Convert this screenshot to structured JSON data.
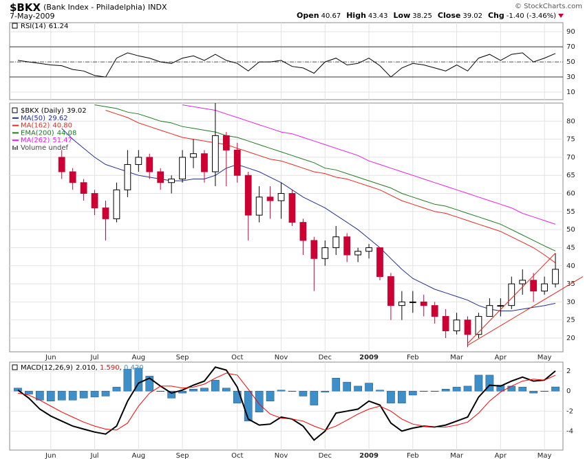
{
  "header": {
    "title": "$BKX",
    "subtitle": "(Bank Index - Philadelphia)",
    "exchange": "INDX",
    "date": "7-May-2009",
    "credit": "© StockCharts.com",
    "quote": [
      {
        "label": "Open",
        "value": "40.67"
      },
      {
        "label": "High",
        "value": "43.43"
      },
      {
        "label": "Low",
        "value": "38.25"
      },
      {
        "label": "Close",
        "value": "39.02"
      },
      {
        "label": "Chg",
        "value": "-1.40 (-3.46%)"
      }
    ]
  },
  "chart_data": [
    {
      "type": "line",
      "series": [
        {
          "name": "RSI(14)",
          "color": "#000000",
          "values": [
            52,
            50,
            48,
            46,
            45,
            40,
            38,
            32,
            30,
            55,
            62,
            58,
            55,
            50,
            48,
            55,
            58,
            52,
            60,
            52,
            48,
            38,
            50,
            50,
            52,
            44,
            42,
            35,
            50,
            55,
            46,
            48,
            55,
            45,
            30,
            42,
            48,
            46,
            42,
            38,
            46,
            38,
            55,
            60,
            52,
            60,
            62,
            50,
            55,
            61.24
          ]
        }
      ],
      "ylim": [
        0,
        102
      ],
      "yticks": [
        10,
        30,
        50,
        70,
        90
      ],
      "reference_lines": [
        30,
        70
      ],
      "center_line": 50,
      "grid": true
    },
    {
      "type": "candlestick",
      "name": "$BKX (Daily)",
      "categories": [
        null,
        null,
        null,
        "Jun",
        null,
        null,
        null,
        "Jul",
        null,
        null,
        null,
        "Aug",
        null,
        null,
        null,
        "Sep",
        null,
        null,
        null,
        null,
        "Oct",
        null,
        null,
        null,
        "Nov",
        null,
        null,
        null,
        "Dec",
        null,
        null,
        null,
        "2009",
        null,
        null,
        null,
        "Feb",
        null,
        null,
        null,
        "Mar",
        null,
        null,
        null,
        "Apr",
        null,
        null,
        null,
        "May",
        null
      ],
      "open": [
        null,
        null,
        null,
        null,
        70,
        66,
        63,
        60,
        56,
        53,
        61,
        68,
        70,
        66,
        63,
        64,
        70,
        71,
        66,
        76,
        72,
        65,
        54,
        59,
        58,
        60,
        52,
        47,
        42,
        45,
        48,
        43,
        44,
        45,
        37,
        29,
        30,
        30,
        29,
        26,
        22,
        25,
        21,
        26,
        29,
        29,
        35,
        36,
        33,
        35
      ],
      "high": [
        null,
        null,
        null,
        null,
        72,
        67,
        64,
        61,
        58,
        63,
        72,
        72,
        71,
        67,
        65,
        72,
        75,
        72,
        85,
        77,
        74,
        66,
        62,
        62,
        63,
        61,
        53,
        48,
        47,
        51,
        49,
        45,
        46,
        45,
        38,
        33,
        33,
        32,
        30,
        28,
        27,
        26,
        27,
        31,
        31,
        37,
        39,
        38,
        37,
        43.43
      ],
      "low": [
        null,
        null,
        null,
        null,
        64,
        61,
        58,
        54,
        47,
        52,
        59,
        66,
        64,
        61,
        60,
        63,
        67,
        63,
        62,
        62,
        63,
        47,
        52,
        53,
        53,
        51,
        43,
        33,
        40,
        43,
        41,
        41,
        42,
        36,
        25,
        25,
        27,
        26,
        24,
        20,
        21,
        17.5,
        20,
        26,
        26,
        28,
        32,
        30,
        32,
        34
      ],
      "close": [
        null,
        null,
        null,
        null,
        66,
        63,
        60,
        56,
        53,
        61,
        68,
        70,
        66,
        63,
        64,
        70,
        71,
        66,
        76,
        72,
        65,
        54,
        59,
        58,
        60,
        52,
        47,
        42,
        45,
        48,
        43,
        44,
        45,
        37,
        29,
        30,
        30,
        29,
        26,
        22,
        25,
        21,
        26,
        29,
        29,
        35,
        36,
        33,
        35,
        39.02
      ],
      "up_color": "#000000",
      "down_color": "#cc0033",
      "series": [
        {
          "name": "MA(50)",
          "color": "#1f2f8f",
          "last_label": "29.62",
          "values": [
            null,
            null,
            null,
            null,
            78,
            75,
            72.5,
            70,
            68,
            67,
            66,
            65,
            64.5,
            64,
            63.5,
            63.5,
            64,
            64,
            65,
            67,
            68,
            67,
            66,
            64.5,
            63,
            61,
            59,
            57.5,
            56,
            54,
            52,
            50,
            47.5,
            45,
            42,
            39,
            36.5,
            35,
            33.5,
            32.5,
            31.5,
            30.5,
            29,
            28,
            27.5,
            27.5,
            28,
            28.5,
            29,
            29.62
          ]
        },
        {
          "name": "MA(162)",
          "color": "#e8281e",
          "last_label": "40.80",
          "values": [
            null,
            null,
            null,
            null,
            null,
            null,
            null,
            null,
            83,
            82,
            81,
            79.5,
            78.5,
            77.5,
            76.5,
            75.5,
            75,
            74.5,
            74,
            73.5,
            72.5,
            71.5,
            70.5,
            69.5,
            69,
            68,
            67,
            66,
            65.5,
            64.5,
            64,
            63,
            62,
            61,
            59.5,
            58,
            57,
            56,
            55,
            54.5,
            53.5,
            52.5,
            51.5,
            50.5,
            49.5,
            48,
            46.5,
            45,
            43,
            40.8
          ]
        },
        {
          "name": "EMA(200)",
          "color": "#1e7a1e",
          "last_label": "44.08",
          "values": [
            null,
            null,
            null,
            null,
            null,
            null,
            null,
            84.5,
            84,
            83.5,
            82.5,
            82,
            81,
            80,
            79.5,
            78.5,
            78,
            77.5,
            77,
            76,
            75.5,
            74.5,
            73.5,
            72.5,
            71.5,
            70.5,
            69.5,
            68.5,
            67,
            66.5,
            65.5,
            64.5,
            63.5,
            62.5,
            61.5,
            60,
            59,
            58,
            57,
            56.5,
            55.5,
            54.5,
            53.5,
            52.5,
            51.5,
            50,
            48.5,
            47,
            45.5,
            44.08
          ]
        },
        {
          "name": "MA(262)",
          "color": "#e81ee8",
          "last_label": "51.47",
          "values": [
            null,
            null,
            null,
            null,
            null,
            null,
            null,
            null,
            null,
            null,
            null,
            null,
            null,
            null,
            null,
            84.5,
            84,
            83.5,
            83,
            82,
            81,
            80,
            79,
            78,
            77,
            76.5,
            75.5,
            74.5,
            73.5,
            72.5,
            71.5,
            70.5,
            69,
            68,
            67,
            66,
            65,
            64,
            63,
            62,
            61,
            60,
            59,
            58,
            57,
            56,
            54.5,
            53.5,
            52.5,
            51.47
          ]
        }
      ],
      "volume_label": "Volume undef",
      "trendlines": [
        {
          "color": "#e8281e",
          "from": [
            41,
            18.5
          ],
          "to": [
            49,
            43.5
          ]
        },
        {
          "color": "#e8281e",
          "from": [
            41,
            18
          ],
          "to": [
            51.5,
            37
          ]
        }
      ],
      "ylim": [
        16.2,
        85
      ],
      "yticks": [
        20,
        25,
        30,
        35,
        40,
        45,
        50,
        55,
        60,
        65,
        70,
        75,
        80
      ],
      "grid": true
    },
    {
      "type": "macd",
      "name": "MACD(12,26,9)",
      "label_separator": ", ",
      "categories": [
        null,
        null,
        null,
        "Jun",
        null,
        null,
        null,
        "Jul",
        null,
        null,
        null,
        "Aug",
        null,
        null,
        null,
        "Sep",
        null,
        null,
        null,
        null,
        "Oct",
        null,
        null,
        null,
        "Nov",
        null,
        null,
        null,
        "Dec",
        null,
        null,
        null,
        "2009",
        null,
        null,
        null,
        "Feb",
        null,
        null,
        null,
        "Mar",
        null,
        null,
        null,
        "Apr",
        null,
        null,
        null,
        "May",
        null
      ],
      "series": [
        {
          "type": "bar",
          "color": "#3d8fc9",
          "last_label": "0.420",
          "values": [
            0.3,
            -0.3,
            -0.9,
            -1,
            -0.9,
            -0.9,
            -0.7,
            -0.6,
            -0.5,
            0.4,
            2.2,
            2.3,
            1.5,
            0,
            -0.7,
            -0.2,
            0.2,
            0.3,
            1.1,
            0.3,
            -1.2,
            -3,
            -2.1,
            -1,
            0.1,
            0,
            -0.5,
            -1.4,
            -0.1,
            1.3,
            0.9,
            0.5,
            0.8,
            0.1,
            -1.2,
            -1.2,
            -0.4,
            0,
            0,
            0.2,
            0.4,
            0.5,
            1.6,
            1.6,
            0.6,
            0.5,
            0.4,
            -0.2,
            0,
            0.42
          ]
        },
        {
          "type": "line",
          "color": "#000000",
          "last_label": "2.010",
          "values": [
            0.1,
            -0.7,
            -1.8,
            -2.5,
            -3,
            -3.5,
            -3.8,
            -4.1,
            -4.3,
            -3.5,
            -1,
            0.8,
            1.3,
            0.5,
            -0.2,
            0.1,
            0.6,
            1,
            2.4,
            2.1,
            0.4,
            -2.8,
            -3.4,
            -3.3,
            -2.6,
            -2.8,
            -3.5,
            -4.9,
            -4,
            -2.2,
            -2,
            -1.8,
            -1,
            -1.4,
            -3.2,
            -4,
            -3.7,
            -3.5,
            -3.6,
            -3.4,
            -3,
            -2.6,
            -0.6,
            0.6,
            0.5,
            1,
            1.4,
            1,
            1.1,
            2.01
          ]
        },
        {
          "type": "line",
          "color": "#ff0000",
          "last_label": "1.590",
          "values": [
            -0.2,
            -0.4,
            -0.9,
            -1.5,
            -2.1,
            -2.6,
            -3.1,
            -3.5,
            -3.8,
            -3.9,
            -3.2,
            -1.5,
            -0.2,
            0.5,
            0.5,
            0.3,
            0.4,
            0.7,
            1.3,
            1.8,
            1.6,
            0.2,
            -1.3,
            -2.3,
            -2.7,
            -2.8,
            -3,
            -3.5,
            -3.9,
            -3.5,
            -2.9,
            -2.3,
            -1.8,
            -1.5,
            -2,
            -2.8,
            -3.3,
            -3.5,
            -3.6,
            -3.6,
            -3.4,
            -3.1,
            -2.2,
            -1,
            -0.1,
            0.5,
            1,
            1.2,
            1.1,
            1.59
          ]
        }
      ],
      "ylim": [
        -5.9,
        2.9
      ],
      "yticks": [
        2,
        0,
        -2,
        -4
      ],
      "grid": true
    }
  ]
}
